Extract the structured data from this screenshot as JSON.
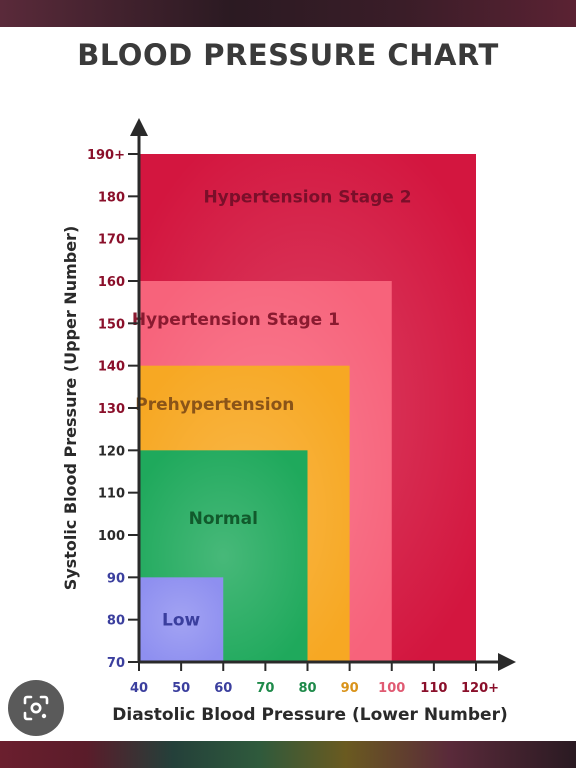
{
  "chart_data": {
    "type": "area",
    "title": "BLOOD PRESSURE CHART",
    "xlabel": "Diastolic Blood Pressure (Lower Number)",
    "ylabel": "Systolic Blood Pressure (Upper Number)",
    "xlim": [
      40,
      120
    ],
    "ylim": [
      70,
      190
    ],
    "x_ticks": [
      {
        "value": 40,
        "label": "40"
      },
      {
        "value": 50,
        "label": "50"
      },
      {
        "value": 60,
        "label": "60"
      },
      {
        "value": 70,
        "label": "70"
      },
      {
        "value": 80,
        "label": "80"
      },
      {
        "value": 90,
        "label": "90"
      },
      {
        "value": 100,
        "label": "100"
      },
      {
        "value": 110,
        "label": "110"
      },
      {
        "value": 120,
        "label": "120+"
      }
    ],
    "y_ticks": [
      {
        "value": 70,
        "label": "70"
      },
      {
        "value": 80,
        "label": "80"
      },
      {
        "value": 90,
        "label": "90"
      },
      {
        "value": 100,
        "label": "100"
      },
      {
        "value": 110,
        "label": "110"
      },
      {
        "value": 120,
        "label": "120"
      },
      {
        "value": 130,
        "label": "130"
      },
      {
        "value": 140,
        "label": "140"
      },
      {
        "value": 150,
        "label": "150"
      },
      {
        "value": 160,
        "label": "160"
      },
      {
        "value": 170,
        "label": "170"
      },
      {
        "value": 180,
        "label": "180"
      },
      {
        "value": 190,
        "label": "190+"
      }
    ],
    "regions": [
      {
        "label": "Hypertension Stage 2",
        "x_max": 120,
        "y_max": 190,
        "label_x": 80,
        "label_y": 180,
        "color": "#d3163f",
        "label_color": "#7a0f2a"
      },
      {
        "label": "Hypertension Stage 1",
        "x_max": 100,
        "y_max": 160,
        "label_x": 63,
        "label_y": 151,
        "color": "#f7637b",
        "label_color": "#8a1a30"
      },
      {
        "label": "Prehypertension",
        "x_max": 90,
        "y_max": 140,
        "label_x": 58,
        "label_y": 131,
        "color": "#f7a823",
        "label_color": "#8a5418"
      },
      {
        "label": "Normal",
        "x_max": 80,
        "y_max": 120,
        "label_x": 60,
        "label_y": 104,
        "color": "#1fa95c",
        "label_color": "#115a2c"
      },
      {
        "label": "Low",
        "x_max": 60,
        "y_max": 90,
        "label_x": 50,
        "label_y": 80,
        "color": "#8e8ff0",
        "label_color": "#3a3e9e"
      }
    ],
    "grid": false,
    "legend": "none",
    "tick_colors": {
      "x_low": "#3b3f9e",
      "x_mid": "#1e8a4a",
      "x_prehyp": "#d9931a",
      "x_stage1": "#e05a72",
      "x_stage2": "#8a0f2a",
      "y_low": "#3b3f9e",
      "y_normal": "#2a2a2a",
      "y_high": "#8a0f2a"
    },
    "axis_color": "#2a2a2a"
  },
  "icons": {
    "lens": "google-lens-icon"
  }
}
